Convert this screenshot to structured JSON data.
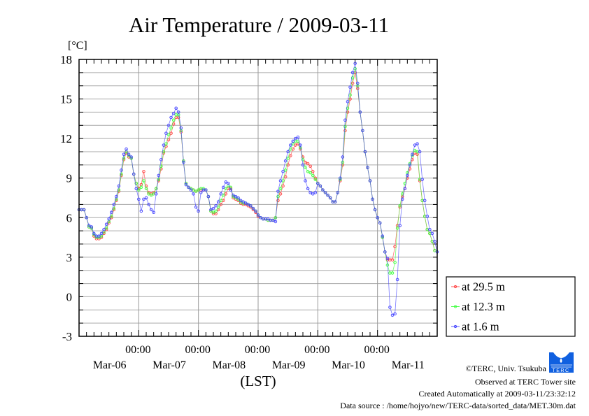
{
  "chart_data": {
    "type": "line",
    "title": "Air Temperature / 2009-03-11",
    "ylabel": "[°C]",
    "xlabel": "(LST)",
    "ylim": [
      -3,
      18
    ],
    "yticks": [
      "-3",
      "0",
      "3",
      "6",
      "9",
      "12",
      "15",
      "18"
    ],
    "ytick_values": [
      -3,
      0,
      3,
      6,
      9,
      12,
      15,
      18
    ],
    "x_unit": "hours since Mar-05 00:00",
    "xlim": [
      0,
      144
    ],
    "x_day_ticks": [
      24,
      48,
      72,
      96,
      120
    ],
    "x_time_labels": [
      "00:00",
      "00:00",
      "00:00",
      "00:00",
      "00:00"
    ],
    "x_date_labels": [
      "Mar-06",
      "Mar-07",
      "Mar-08",
      "Mar-09",
      "Mar-10",
      "Mar-11"
    ],
    "grid": true,
    "legend_position": "right-bottom",
    "x_step_hours": 1,
    "series": [
      {
        "name": "at 29.5 m",
        "color": "#ff4040",
        "values": [
          6.6,
          6.6,
          6.6,
          6.0,
          5.3,
          5.2,
          4.6,
          4.4,
          4.4,
          4.5,
          4.8,
          5.1,
          5.6,
          6.0,
          6.6,
          7.3,
          8.0,
          9.2,
          10.4,
          10.9,
          10.6,
          10.5,
          9.3,
          8.6,
          8.2,
          8.5,
          9.5,
          8.4,
          7.9,
          7.8,
          7.9,
          8.2,
          8.8,
          9.7,
          10.9,
          11.4,
          11.9,
          12.4,
          13.1,
          13.6,
          13.6,
          12.5,
          10.3,
          8.6,
          8.3,
          8.2,
          8.1,
          8.0,
          8.1,
          8.1,
          8.1,
          8.1,
          7.6,
          6.5,
          6.3,
          6.3,
          6.6,
          7.0,
          7.3,
          7.8,
          8.2,
          8.2,
          7.5,
          7.4,
          7.3,
          7.1,
          7.0,
          7.0,
          6.9,
          6.8,
          6.6,
          6.4,
          6.1,
          6.0,
          5.9,
          5.9,
          5.8,
          5.8,
          5.8,
          6.0,
          7.3,
          7.8,
          8.4,
          9.1,
          10.0,
          10.7,
          11.2,
          11.5,
          11.6,
          11.2,
          10.6,
          10.2,
          10.1,
          9.9,
          9.5,
          9.0,
          8.6,
          8.4,
          8.1,
          7.9,
          7.7,
          7.5,
          7.2,
          7.2,
          7.9,
          8.8,
          10.0,
          12.6,
          14.0,
          15.0,
          16.2,
          17.0,
          15.8,
          14.0,
          12.6,
          11.0,
          9.8,
          8.8,
          7.4,
          6.6,
          6.0,
          5.6,
          4.5,
          3.4,
          2.8,
          2.8,
          2.8,
          3.8,
          5.4,
          6.8,
          7.6,
          8.2,
          9.0,
          9.7,
          10.4,
          10.9,
          10.8,
          8.8,
          7.3,
          6.1,
          5.1,
          4.8,
          4.2,
          3.5
        ]
      },
      {
        "name": "at 12.3 m",
        "color": "#40ff40",
        "values": [
          6.6,
          6.6,
          6.6,
          6.0,
          5.3,
          5.2,
          4.7,
          4.5,
          4.5,
          4.6,
          4.9,
          5.2,
          5.7,
          6.1,
          6.7,
          7.4,
          8.1,
          9.3,
          10.5,
          11.0,
          10.7,
          10.5,
          9.3,
          8.6,
          8.1,
          8.3,
          8.8,
          8.2,
          7.8,
          7.7,
          7.8,
          8.2,
          8.9,
          9.9,
          11.0,
          11.6,
          12.3,
          12.8,
          13.4,
          13.8,
          13.8,
          12.6,
          10.3,
          8.6,
          8.3,
          8.2,
          8.1,
          8.0,
          8.1,
          8.2,
          8.2,
          8.1,
          7.6,
          6.5,
          6.4,
          6.5,
          6.8,
          7.3,
          7.7,
          8.2,
          8.4,
          8.3,
          7.6,
          7.5,
          7.4,
          7.2,
          7.1,
          7.1,
          7.0,
          6.9,
          6.7,
          6.5,
          6.2,
          6.0,
          5.9,
          5.9,
          5.8,
          5.8,
          5.8,
          6.0,
          7.6,
          8.2,
          8.8,
          9.6,
          10.5,
          11.2,
          11.6,
          11.8,
          11.8,
          11.3,
          10.4,
          9.8,
          9.5,
          9.4,
          9.2,
          8.9,
          8.6,
          8.4,
          8.1,
          7.9,
          7.7,
          7.5,
          7.2,
          7.2,
          7.9,
          8.9,
          10.2,
          12.9,
          14.3,
          15.3,
          16.6,
          17.3,
          16.0,
          14.0,
          12.6,
          11.0,
          9.8,
          8.8,
          7.4,
          6.6,
          6.0,
          5.6,
          4.5,
          3.4,
          2.4,
          1.8,
          1.8,
          2.6,
          5.2,
          6.9,
          7.8,
          8.6,
          9.4,
          10.1,
          10.7,
          11.1,
          11.0,
          8.9,
          7.3,
          6.1,
          5.1,
          4.8,
          4.2,
          3.5
        ]
      },
      {
        "name": "at 1.6 m",
        "color": "#4040ff",
        "values": [
          6.6,
          6.6,
          6.6,
          6.0,
          5.4,
          5.3,
          4.8,
          4.6,
          4.6,
          4.8,
          5.1,
          5.5,
          5.9,
          6.4,
          7.0,
          7.6,
          8.4,
          9.6,
          10.8,
          11.2,
          10.8,
          10.6,
          9.3,
          8.2,
          7.4,
          6.5,
          7.4,
          7.5,
          7.0,
          6.6,
          6.4,
          7.8,
          9.2,
          10.4,
          11.5,
          12.4,
          13.0,
          13.6,
          13.9,
          14.3,
          14.0,
          12.8,
          10.2,
          8.5,
          8.3,
          8.1,
          7.8,
          6.8,
          6.5,
          7.9,
          8.1,
          8.1,
          7.6,
          6.6,
          6.7,
          6.9,
          7.2,
          7.8,
          8.3,
          8.7,
          8.6,
          8.1,
          7.7,
          7.6,
          7.5,
          7.3,
          7.2,
          7.1,
          7.0,
          6.9,
          6.7,
          6.5,
          6.2,
          6.0,
          5.9,
          5.9,
          5.9,
          5.8,
          5.8,
          5.7,
          8.0,
          8.8,
          9.5,
          10.3,
          11.0,
          11.5,
          11.8,
          12.0,
          12.1,
          11.5,
          10.0,
          8.8,
          8.2,
          7.9,
          7.8,
          7.9,
          8.6,
          8.4,
          8.1,
          7.9,
          7.7,
          7.5,
          7.2,
          7.2,
          7.9,
          9.0,
          10.6,
          13.4,
          14.8,
          15.9,
          17.0,
          17.7,
          16.2,
          14.0,
          12.6,
          11.0,
          9.8,
          8.8,
          7.4,
          6.6,
          6.0,
          5.6,
          4.6,
          3.4,
          2.9,
          -0.8,
          -1.4,
          -1.3,
          1.3,
          5.4,
          7.4,
          8.2,
          9.2,
          10.0,
          10.8,
          11.5,
          11.6,
          11.0,
          8.9,
          7.3,
          6.1,
          5.1,
          4.8,
          4.2,
          3.4
        ]
      }
    ]
  },
  "footer": {
    "copyright": "©TERC, Univ. Tsukuba",
    "observed": "Observed at TERC Tower site",
    "created": "Created Automatically at 2009-03-11/23:32:12",
    "source": "Data source : /home/hojyo/new/TERC-data/sorted_data/MET.30m.dat",
    "logo_text": "TERC"
  }
}
